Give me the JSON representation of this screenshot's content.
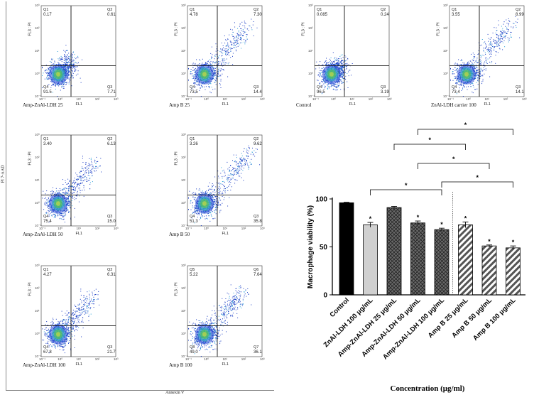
{
  "flow": {
    "outer_y_label": "PI 7-AAD",
    "outer_x_label": "Annexin V",
    "y_axis_label": "FL3 : PI",
    "x_axis_label": "FL1",
    "ticks_y": [
      "10³",
      "10²",
      "10¹",
      "10⁰",
      "10⁻¹"
    ],
    "ticks_x": [
      "10⁻¹",
      "10⁰",
      "10¹",
      "10²",
      "10³"
    ],
    "panels": [
      {
        "title": "Amp-ZnAl-LDH 25",
        "labels": [
          "Q1",
          "Q2",
          "Q3",
          "Q4"
        ],
        "values": [
          "0.17",
          "0.61",
          "7.71",
          "91.5"
        ]
      },
      {
        "title": "Amp B 25",
        "labels": [
          "Q1",
          "Q2",
          "Q3",
          "Q4"
        ],
        "values": [
          "4.78",
          "7.30",
          "14.4",
          "73.5"
        ]
      },
      {
        "title": "Control",
        "labels": [
          "Q1",
          "Q2",
          "Q3",
          "Q4"
        ],
        "values": [
          "0.085",
          "0.24",
          "3.19",
          "96.5"
        ]
      },
      {
        "title": "ZnAl-LDH carrier 100",
        "labels": [
          "Q1",
          "Q2",
          "Q3",
          "Q4"
        ],
        "values": [
          "3.55",
          "8.99",
          "14.1",
          "73.4"
        ]
      },
      {
        "title": "Amp-ZnAl-LDH 50",
        "labels": [
          "Q1",
          "Q2",
          "Q3",
          "Q4"
        ],
        "values": [
          "3.40",
          "6.13",
          "15.0",
          "75.4"
        ]
      },
      {
        "title": "Amp B 50",
        "labels": [
          "Q1",
          "Q2",
          "Q3",
          "Q4"
        ],
        "values": [
          "3.26",
          "9.62",
          "35.8",
          "51.3"
        ]
      },
      {
        "title": "Amp-ZnAl-LDH 100",
        "labels": [
          "Q1",
          "Q2",
          "Q3",
          "Q4"
        ],
        "values": [
          "4.27",
          "6.31",
          "21.7",
          "67.8"
        ]
      },
      {
        "title": "Amp B 100",
        "labels": [
          "Q5",
          "Q6",
          "Q7",
          "Q8"
        ],
        "values": [
          "5.22",
          "7.64",
          "36.1",
          "49.0"
        ]
      }
    ]
  },
  "chart_data": {
    "type": "bar",
    "title": "",
    "xlabel": "Concentration (μg/ml)",
    "ylabel": "Macrophage viability (%)",
    "ylim": [
      0,
      100
    ],
    "yticks": [
      "0",
      "50",
      "100"
    ],
    "categories": [
      "Control",
      "ZnAl-LDH 100 μg/mL",
      "Amp-ZnAl-LDH 25 μg/mL",
      "Amp-ZnAl-LDH 50 μg/mL",
      "Amp-ZnAl-LDH 100 μg/mL",
      "Amp B 25 μg/mL",
      "Amp B 50 μg/mL",
      "Amp B 100 μg/mL"
    ],
    "values": [
      96,
      73,
      91,
      75,
      68,
      73,
      51,
      49
    ],
    "errors": [
      0.5,
      2.5,
      1.2,
      2,
      1.5,
      3,
      1,
      2
    ],
    "significance": [
      "",
      "*",
      "",
      "*",
      "*",
      "*",
      "*",
      "*"
    ],
    "brackets": [
      {
        "from": 1,
        "to": 4,
        "label": "*"
      },
      {
        "from": 4,
        "to": 7,
        "label": "*"
      },
      {
        "from": 3,
        "to": 6,
        "label": "*"
      },
      {
        "from": 2,
        "to": 5,
        "label": "*"
      },
      {
        "from": 3,
        "to": 7,
        "label": "*"
      }
    ]
  }
}
